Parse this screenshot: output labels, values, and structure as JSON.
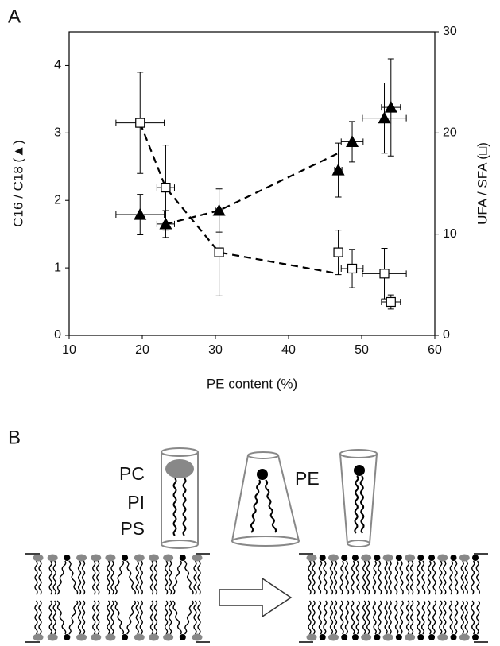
{
  "chart_data": {
    "type": "scatter",
    "label": "A",
    "xlabel": "PE content (%)",
    "ylabel": "C16 / C18 (▲)",
    "y2label": "UFA / SFA (□)",
    "xlim": [
      10,
      60
    ],
    "xticks": [
      10,
      20,
      30,
      40,
      50,
      60
    ],
    "ylim": [
      0,
      4.5
    ],
    "yticks": [
      0,
      1,
      2,
      3,
      4
    ],
    "y2lim": [
      0,
      30
    ],
    "y2ticks": [
      0,
      10,
      20,
      30
    ],
    "series": [
      {
        "marker": "triangle",
        "color": "#000000",
        "axis": "y",
        "x": [
          19.7,
          23.2,
          30.5,
          46.8,
          48.7,
          53.1,
          54.0
        ],
        "values": [
          1.79,
          1.65,
          1.85,
          2.45,
          2.87,
          3.22,
          3.38
        ],
        "xerr": [
          3.3,
          1.2,
          0.5,
          0.5,
          1.5,
          3.0,
          1.3
        ],
        "yerr": [
          0.3,
          0.2,
          0.32,
          0.4,
          0.3,
          0.52,
          0.72
        ]
      },
      {
        "marker": "square",
        "color": "#ffffff",
        "axis": "y2",
        "x": [
          19.7,
          23.2,
          30.5,
          46.8,
          48.7,
          53.1,
          54.0
        ],
        "values": [
          21.0,
          14.6,
          8.2,
          8.2,
          6.6,
          6.1,
          3.3
        ],
        "xerr": [
          3.3,
          1.2,
          0.5,
          0.5,
          1.5,
          3.0,
          1.3
        ],
        "yerr": [
          5.0,
          4.2,
          4.3,
          2.2,
          1.9,
          2.5,
          0.7
        ]
      }
    ],
    "trend_lines": [
      {
        "axis": "y",
        "x": [
          23.2,
          30.5,
          46.8
        ],
        "values": [
          1.65,
          1.85,
          2.7
        ]
      },
      {
        "axis": "y2",
        "x": [
          19.7,
          23.2,
          30.5,
          46.8
        ],
        "values": [
          21.0,
          14.6,
          8.2,
          6.1
        ]
      }
    ]
  },
  "diagram": {
    "label": "B",
    "left_labels": [
      "PC",
      "PI",
      "PS"
    ],
    "right_label": "PE"
  }
}
